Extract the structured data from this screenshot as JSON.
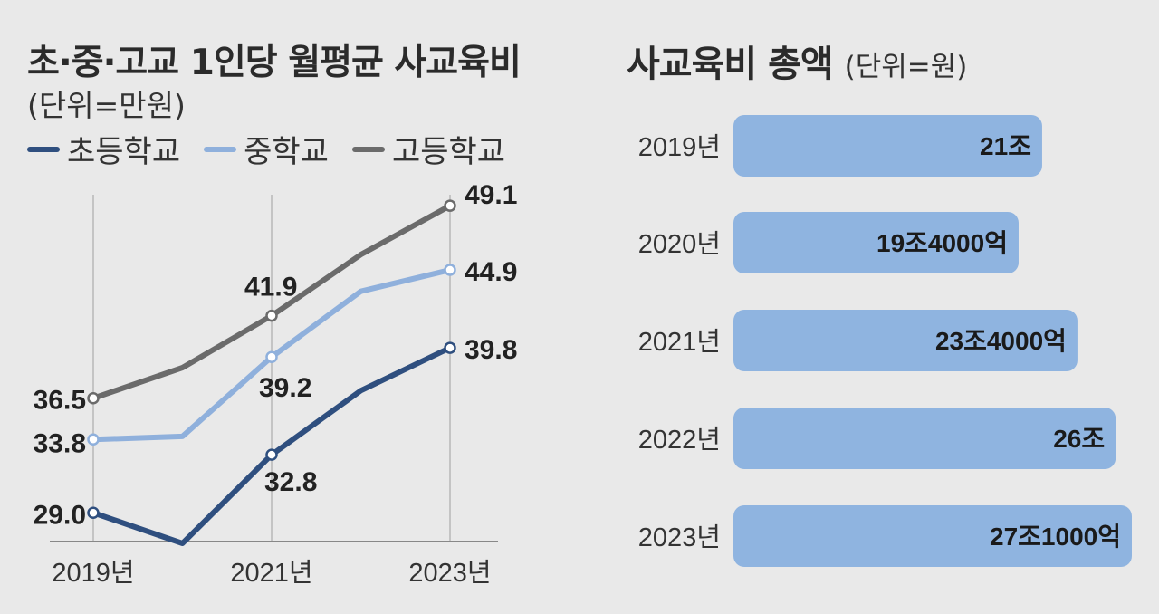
{
  "chart_data": [
    {
      "type": "line",
      "title": "초·중·고교 1인당 월평균 사교육비",
      "subtitle": "(단위=만원)",
      "x": [
        2019,
        2020,
        2021,
        2022,
        2023
      ],
      "tick_labels": [
        "2019년",
        "2021년",
        "2023년"
      ],
      "tick_values": [
        2019,
        2021,
        2023
      ],
      "ylim": [
        27,
        50
      ],
      "legend_position": "top-left",
      "series": [
        {
          "name": "초등학교",
          "color": "#2f4f7f",
          "values": [
            29.0,
            27.0,
            32.8,
            37.0,
            39.8
          ],
          "labels": {
            "0": "29.0",
            "2": "32.8",
            "4": "39.8"
          }
        },
        {
          "name": "중학교",
          "color": "#8fb0dc",
          "values": [
            33.8,
            34.0,
            39.2,
            43.5,
            44.9
          ],
          "labels": {
            "0": "33.8",
            "2": "39.2",
            "4": "44.9"
          }
        },
        {
          "name": "고등학교",
          "color": "#6b6b6b",
          "values": [
            36.5,
            38.5,
            41.9,
            45.9,
            49.1
          ],
          "labels": {
            "0": "36.5",
            "2": "41.9",
            "4": "49.1"
          }
        }
      ]
    },
    {
      "type": "bar",
      "orientation": "horizontal",
      "title": "사교육비 총액",
      "subtitle": "(단위=원)",
      "categories": [
        "2019년",
        "2020년",
        "2021년",
        "2022년",
        "2023년"
      ],
      "values": [
        21.0,
        19.4,
        23.4,
        26.0,
        27.1
      ],
      "value_labels": [
        "21조",
        "19조4000억",
        "23조4000억",
        "26조",
        "27조1000억"
      ],
      "color": "#8fb4e0"
    }
  ]
}
